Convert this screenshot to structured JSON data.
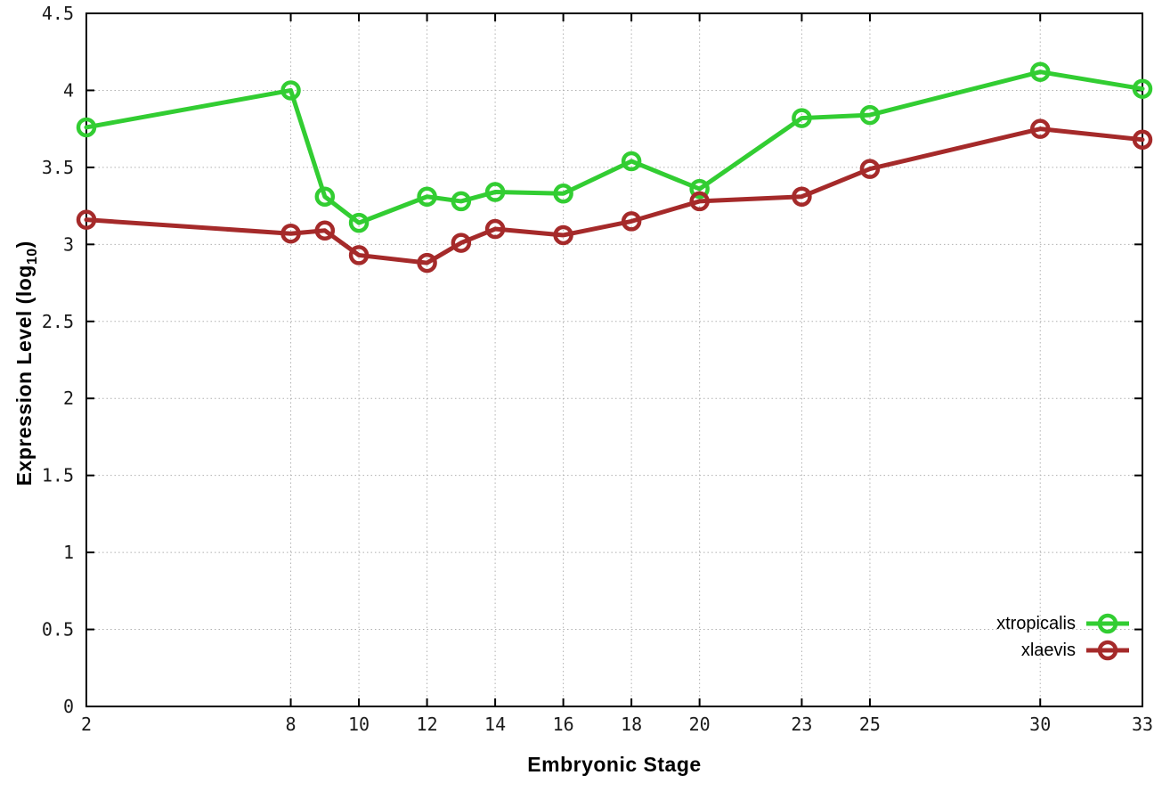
{
  "chart_data": {
    "type": "line",
    "title": "",
    "xlabel": "Embryonic Stage",
    "ylabel": {
      "pre": "Expression Level (log",
      "sub": "10",
      "post": ")"
    },
    "x": [
      2,
      8,
      9,
      10,
      12,
      13,
      14,
      16,
      18,
      20,
      23,
      25,
      30,
      33
    ],
    "series": [
      {
        "name": "xtropicalis",
        "color": "#32cd32",
        "values": [
          3.76,
          4.0,
          3.31,
          3.14,
          3.31,
          3.28,
          3.34,
          3.33,
          3.54,
          3.36,
          3.82,
          3.84,
          4.12,
          4.01
        ]
      },
      {
        "name": "xlaevis",
        "color": "#a52a2a",
        "values": [
          3.16,
          3.07,
          3.09,
          2.93,
          2.88,
          3.01,
          3.1,
          3.06,
          3.15,
          3.28,
          3.31,
          3.49,
          3.75,
          3.68
        ]
      }
    ],
    "xlim": [
      2,
      33
    ],
    "ylim": [
      0,
      4.5
    ],
    "xticks": {
      "values": [
        2,
        8,
        10,
        12,
        14,
        16,
        18,
        20,
        23,
        25,
        30,
        33
      ],
      "labels": [
        "2",
        "8",
        "10",
        "12",
        "14",
        "16",
        "18",
        "20",
        "23",
        "25",
        "30",
        "33"
      ]
    },
    "yticks": {
      "values": [
        0,
        0.5,
        1,
        1.5,
        2,
        2.5,
        3,
        3.5,
        4,
        4.5
      ],
      "labels": [
        "0",
        "0.5",
        "1",
        "1.5",
        "2",
        "2.5",
        "3",
        "3.5",
        "4",
        "4.5"
      ]
    },
    "grid": true,
    "legend_position": "bottom-right",
    "marker": "open-circle",
    "colors": {
      "grid": "#b0b0b0",
      "border": "#000000",
      "background": "#ffffff"
    }
  }
}
